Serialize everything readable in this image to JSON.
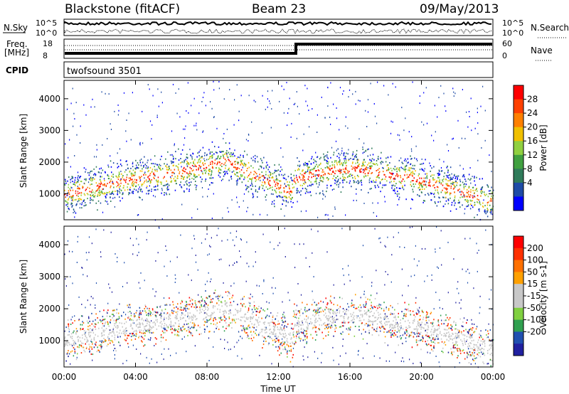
{
  "header": {
    "station": "Blackstone (fitACF)",
    "beam": "Beam 23",
    "date": "09/May/2013"
  },
  "top_panels": {
    "nsky_label": "N.Sky",
    "nsky_ticks": [
      "10^5",
      "10^0"
    ],
    "nsearch_label": "N.Search",
    "nsearch_ticks": [
      "10^5",
      "10^0"
    ],
    "freq_label": "Freq.",
    "freq_unit": "[MHz]",
    "freq_ticks": [
      "18",
      "8"
    ],
    "nave_label": "Nave",
    "nave_ticks": [
      "60",
      "0"
    ],
    "cpid_label": "CPID",
    "cpid_value": "twofsound 3501"
  },
  "chart_data": [
    {
      "type": "heatmap",
      "panel": "power",
      "ylabel": "Slant Range [km]",
      "yticks": [
        "1000",
        "2000",
        "3000",
        "4000"
      ],
      "ylim": [
        180,
        4580
      ],
      "xlim": [
        0,
        24
      ],
      "colorbar_label": "Power [dB]",
      "colorbar_ticks": [
        "28",
        "24",
        "20",
        "16",
        "12",
        "8",
        "4"
      ],
      "colors": [
        "#0000ff",
        "#1e4ba6",
        "#2f7b5a",
        "#40a040",
        "#90d040",
        "#f0c000",
        "#ff8000",
        "#ff4000",
        "#ff0000"
      ],
      "scatter_bands": [
        {
          "t_start": 0.0,
          "t_end": 3.0,
          "r_start": 950,
          "r_end": 1350,
          "level": "high"
        },
        {
          "t_start": 3.0,
          "t_end": 6.5,
          "r_start": 1350,
          "r_end": 1700,
          "level": "mid"
        },
        {
          "t_start": 6.5,
          "t_end": 9.0,
          "r_start": 1700,
          "r_end": 2100,
          "level": "low"
        },
        {
          "t_start": 9.0,
          "t_end": 12.5,
          "r_start": 2000,
          "r_end": 1000,
          "level": "high"
        },
        {
          "t_start": 13.0,
          "t_end": 19.0,
          "r_start": 1800,
          "r_end": 1700,
          "level": "mid"
        },
        {
          "t_start": 19.0,
          "t_end": 24.0,
          "r_start": 1600,
          "r_end": 700,
          "level": "high"
        }
      ]
    },
    {
      "type": "heatmap",
      "panel": "velocity",
      "ylabel": "Slant Range [km]",
      "yticks": [
        "1000",
        "2000",
        "3000",
        "4000"
      ],
      "ylim": [
        180,
        4580
      ],
      "xlim": [
        0,
        24
      ],
      "xticks": [
        "00:00",
        "04:00",
        "08:00",
        "12:00",
        "16:00",
        "20:00",
        "00:00"
      ],
      "xlabel": "Time UT",
      "colorbar_label": "Velocity [m s-1]",
      "colorbar_ticks": [
        "200",
        "100",
        "50",
        "15",
        "-15",
        "-50",
        "-100",
        "-200"
      ],
      "colors": [
        "#2020a0",
        "#2050b0",
        "#30a050",
        "#80d040",
        "#c8c8c8",
        "#c8c8c8",
        "#ffa000",
        "#ff7000",
        "#ff3000",
        "#ff0000"
      ]
    }
  ]
}
